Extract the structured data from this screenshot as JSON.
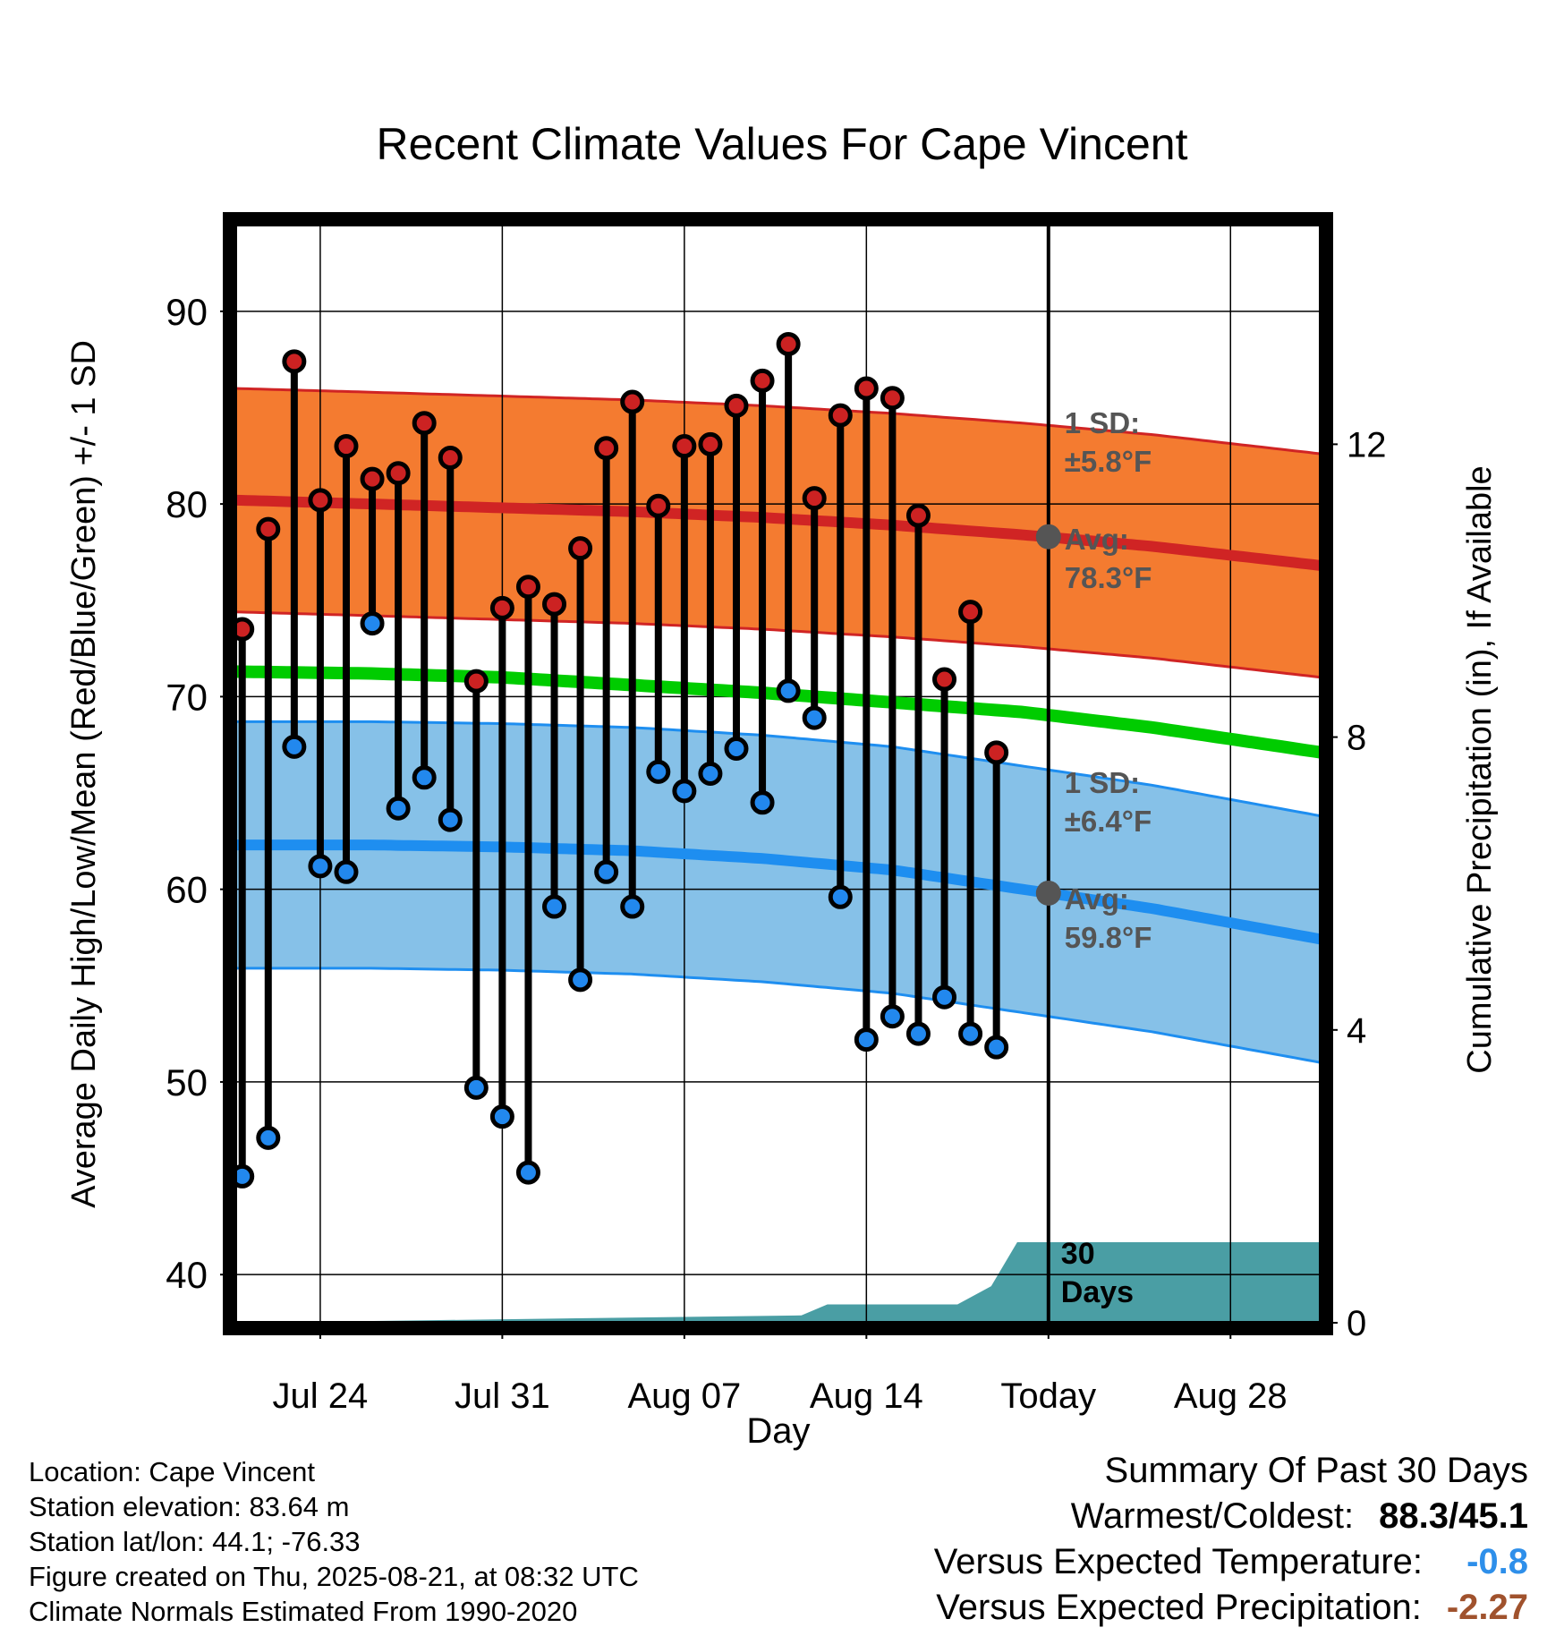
{
  "chart_data": {
    "type": "line",
    "title": "Recent Climate Values For Cape Vincent",
    "xlabel": "Day",
    "ylabel": "Average Daily High/Low/Mean (Red/Blue/Green) +/- 1 SD",
    "y2label": "Cumulative Precipitation (in), If Available",
    "ylim": [
      37.5,
      94.5
    ],
    "y2lim": [
      0,
      15
    ],
    "grid": true,
    "y_ticks": [
      40,
      50,
      60,
      70,
      80,
      90
    ],
    "y2_ticks": [
      0,
      4,
      8,
      12
    ],
    "x_ticks": [
      "Jul 24",
      "Jul 31",
      "Aug 07",
      "Aug 14",
      "Today",
      "Aug 28"
    ],
    "x_tick_day_index": [
      3,
      10,
      17,
      24,
      31,
      38
    ],
    "xlim": [
      -0.3,
      41.5
    ],
    "today_index": 31,
    "obs_days": [
      0,
      1,
      2,
      3,
      4,
      5,
      6,
      7,
      8,
      9,
      10,
      11,
      12,
      13,
      14,
      15,
      16,
      17,
      18,
      19,
      20,
      21,
      22,
      23,
      24,
      25,
      26,
      27,
      28,
      29
    ],
    "obs_high": [
      73.5,
      78.7,
      87.4,
      80.2,
      83.0,
      81.3,
      81.6,
      84.2,
      82.4,
      70.8,
      74.6,
      75.7,
      74.8,
      77.7,
      82.9,
      85.3,
      79.9,
      83.0,
      83.1,
      85.1,
      86.4,
      88.3,
      80.3,
      84.6,
      86.0,
      85.5,
      79.4,
      70.9,
      74.4,
      67.1
    ],
    "obs_low": [
      45.1,
      47.1,
      67.4,
      61.2,
      60.9,
      73.8,
      64.2,
      65.8,
      63.6,
      49.7,
      48.2,
      45.3,
      59.1,
      55.3,
      60.9,
      59.1,
      66.1,
      65.1,
      66.0,
      67.3,
      64.5,
      70.3,
      68.9,
      59.6,
      52.2,
      53.4,
      52.5,
      54.4,
      52.5,
      51.8
    ],
    "normal_days": [
      -0.3,
      5,
      10,
      15,
      20,
      25,
      30,
      35,
      41.5
    ],
    "normal_high": [
      80.2,
      80.0,
      79.8,
      79.6,
      79.3,
      78.9,
      78.4,
      77.8,
      76.8
    ],
    "normal_mean": [
      71.3,
      71.2,
      71.0,
      70.6,
      70.2,
      69.7,
      69.2,
      68.4,
      67.1
    ],
    "normal_low": [
      62.3,
      62.3,
      62.2,
      62.0,
      61.6,
      61.0,
      60.0,
      59.0,
      57.4
    ],
    "high_sd_band": {
      "sd_label": "1 SD:",
      "sd_value": "±5.8°F",
      "avg_label": "Avg:",
      "avg_value": "78.3°F",
      "sd": 5.8
    },
    "low_sd_band": {
      "sd_label": "1 SD:",
      "sd_value": "±6.4°F",
      "avg_label": "Avg:",
      "avg_value": "59.8°F",
      "sd": 6.4
    },
    "today_high_avg": 78.3,
    "today_low_avg": 59.8,
    "precip_days": [
      -0.3,
      21.5,
      22.5,
      27.5,
      28.8,
      29.8,
      41.5
    ],
    "precip_values": [
      0.0,
      0.1,
      0.25,
      0.25,
      0.5,
      1.1,
      1.1
    ],
    "precip_label_num": "30",
    "precip_label_text": "Days",
    "colors": {
      "high_band": "#f47b30",
      "high_line": "#d02424",
      "low_band": "#86c1e8",
      "low_line": "#1e8ef0",
      "mean_line": "#00cc00",
      "precip": "#4a9ea4",
      "high_marker": "#cc2222",
      "low_marker": "#2288ee",
      "annotation": "#555555",
      "temp_departure": "#2e8fea",
      "precip_departure": "#a0522d"
    }
  },
  "footer": {
    "location": "Location: Cape Vincent",
    "elevation": "Station elevation: 83.64 m",
    "latlon": "Station lat/lon: 44.1; -76.33",
    "created": "Figure created on Thu, 2025-08-21, at 08:32 UTC",
    "normals": "Climate Normals Estimated From 1990-2020"
  },
  "summary": {
    "title": "Summary Of Past 30 Days",
    "warmest_coldest_label": "Warmest/Coldest:",
    "warmest_value": "88.3",
    "coldest_value": "45.1",
    "temp_label": "Versus Expected Temperature:",
    "temp_value": "-0.8",
    "precip_label": "Versus Expected Precipitation:",
    "precip_value": "-2.27"
  }
}
